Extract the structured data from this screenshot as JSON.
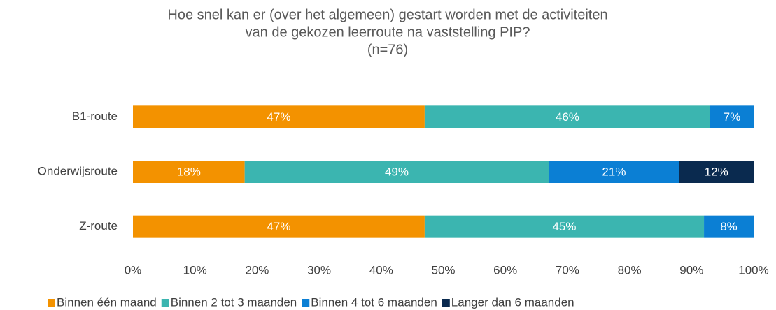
{
  "chart_data": {
    "type": "stacked_bar_horizontal",
    "title": [
      "Hoe snel kan er (over het algemeen) gestart worden met de activiteiten",
      "van de gekozen leerroute na vaststelling PIP?"
    ],
    "subtitle": "(n=76)",
    "categories": [
      "B1-route",
      "Onderwijsroute",
      "Z-route"
    ],
    "series": [
      {
        "name": "Binnen één maand",
        "color": "#f39200",
        "values": [
          47,
          18,
          47
        ],
        "value_labels": [
          "47%",
          "18%",
          "47%"
        ]
      },
      {
        "name": "Binnen 2 tot 3 maanden",
        "color": "#3bb5b0",
        "values": [
          46,
          49,
          45
        ],
        "value_labels": [
          "46%",
          "49%",
          "45%"
        ]
      },
      {
        "name": "Binnen 4 tot 6 maanden",
        "color": "#0b7fd4",
        "values": [
          7,
          21,
          8
        ],
        "value_labels": [
          "7%",
          "21%",
          "8%"
        ]
      },
      {
        "name": "Langer dan 6 maanden",
        "color": "#0a2a4f",
        "values": [
          null,
          12,
          null
        ],
        "value_labels": [
          null,
          "12%",
          null
        ]
      }
    ],
    "xlim": [
      0,
      100
    ],
    "xticks": [
      {
        "value": 0,
        "label": "0%"
      },
      {
        "value": 10,
        "label": "10%"
      },
      {
        "value": 20,
        "label": "20%"
      },
      {
        "value": 30,
        "label": "30%"
      },
      {
        "value": 40,
        "label": "40%"
      },
      {
        "value": 50,
        "label": "50%"
      },
      {
        "value": 60,
        "label": "60%"
      },
      {
        "value": 70,
        "label": "70%"
      },
      {
        "value": 80,
        "label": "80%"
      },
      {
        "value": 90,
        "label": "90%"
      },
      {
        "value": 100,
        "label": "100%"
      }
    ],
    "legend": "bottom"
  }
}
